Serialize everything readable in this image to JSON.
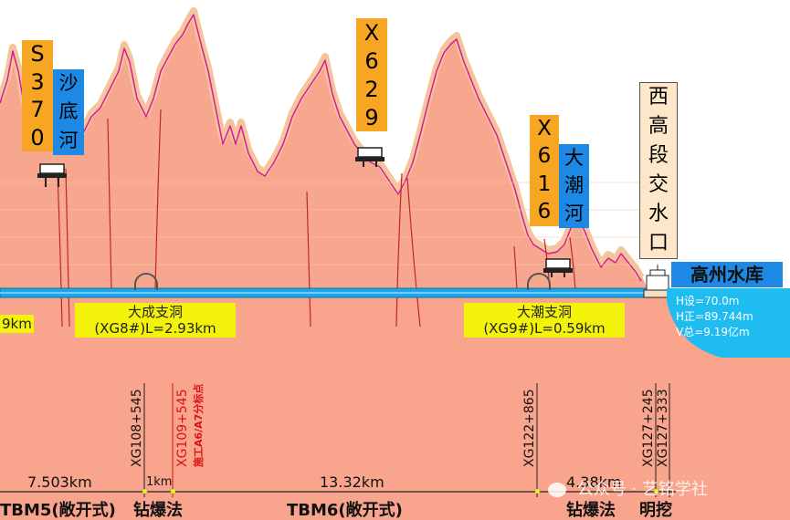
{
  "colors": {
    "terrain": "#f7a78e",
    "terrain_top": "#f4c59a",
    "terrain_outline": "#d81b9b",
    "below": "#f9a48c",
    "tunnel": "#1ea7e8",
    "label_orange": "#f6a623",
    "label_blue": "#1e88e5",
    "label_yellow": "#f2f20a",
    "reservoir": "#1ebcf0",
    "red_line": "#c0262a"
  },
  "roads": {
    "s370": [
      "S",
      "3",
      "7",
      "0"
    ],
    "x629": [
      "X",
      "6",
      "2",
      "9"
    ],
    "x616": [
      "X",
      "6",
      "1",
      "6"
    ]
  },
  "rivers": {
    "shadi": [
      "沙",
      "底",
      "河"
    ],
    "dachao": [
      "大",
      "潮",
      "河"
    ]
  },
  "intake_label": [
    "西",
    "高",
    "段",
    "交",
    "水",
    "口"
  ],
  "reservoir": {
    "name": "高州水库",
    "h_design": "H设=70.0m",
    "h_normal": "H正=89.744m",
    "volume": "V总=9.19亿m"
  },
  "adits": {
    "left_fragment": "9km",
    "dacheng_line1": "大成支洞",
    "dacheng_line2": "(XG8#)L=2.93km",
    "dachao_line1": "大潮支洞",
    "dachao_line2": "(XG9#)L=0.59km"
  },
  "chainages": {
    "c1": "XG108+545",
    "c2": "XG109+545",
    "c2_note": "施工A6/A7分标点",
    "c3": "XG122+865",
    "c4": "XG127+245",
    "c5": "XG127+333"
  },
  "distances": {
    "d1": "7.503km",
    "d2": "1km",
    "d3": "13.32km",
    "d4": "4.38km"
  },
  "methods": {
    "m1": "TBM5(敞开式)",
    "m2": "钻爆法",
    "m3": "TBM6(敞开式)",
    "m4": "钻爆法",
    "m5": "明挖"
  },
  "watermark": "公众号 · 艺铭学社"
}
